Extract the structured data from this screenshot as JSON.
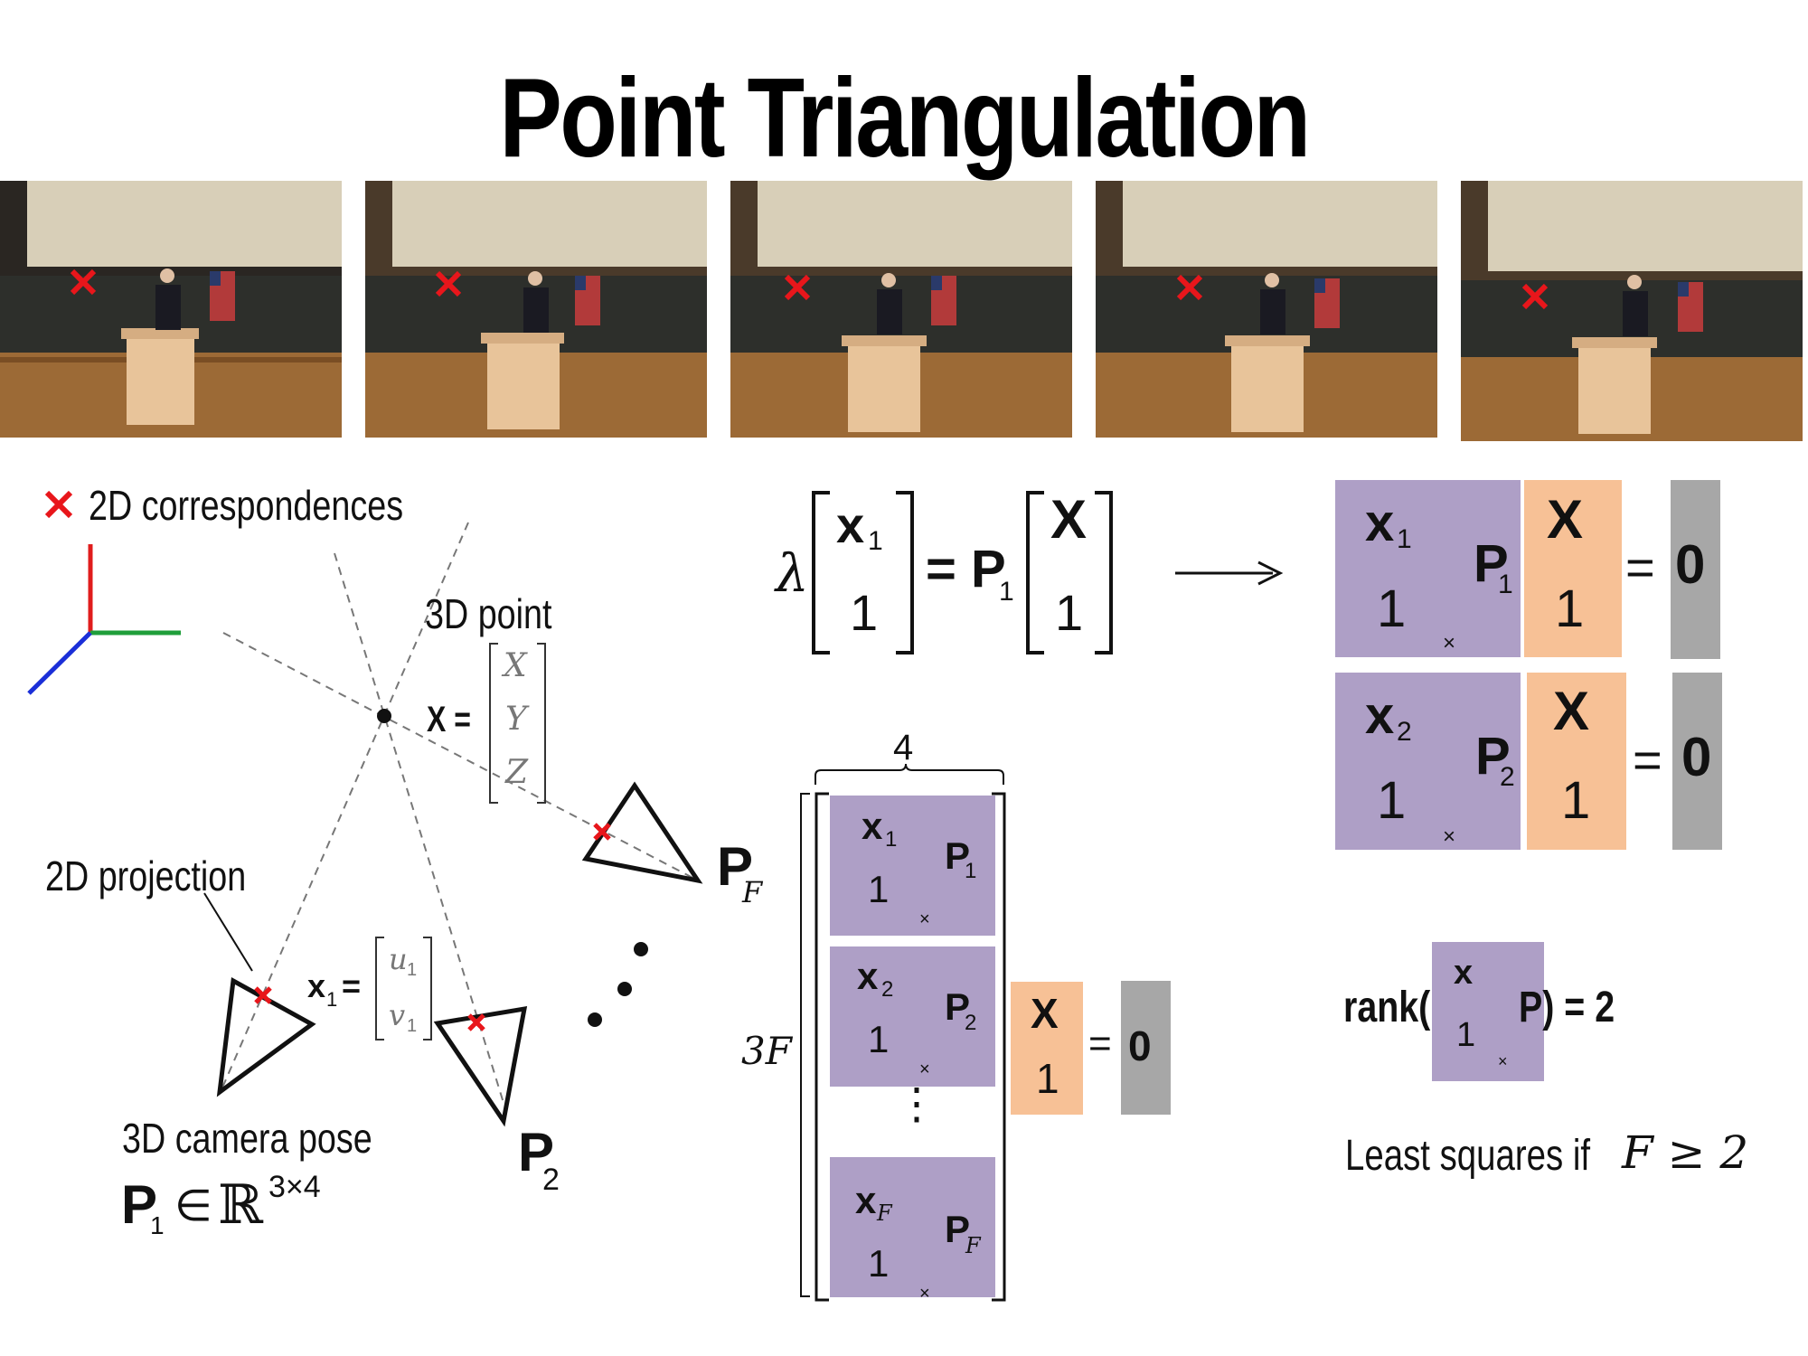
{
  "title": "Point Triangulation",
  "legend": {
    "marker": "✕",
    "label": "2D correspondences"
  },
  "labels": {
    "point3d": "3D point",
    "proj2d": "2D projection",
    "cam_pose": "3D camera pose",
    "X_eq": "X =",
    "X_vec": [
      "X",
      "Y",
      "Z"
    ],
    "x1_eq_main": "x",
    "x1_eq_sub": "1",
    "x1_eq_sign": "=",
    "x1_vec": [
      "u",
      "v"
    ],
    "x1_vec_sub": "1",
    "P1": "P",
    "P1_sub": "1",
    "in": "∈",
    "reals": "ℝ",
    "dims": "3×4",
    "P2": "P",
    "P2_sub": "2",
    "PF": "P",
    "PF_sub": "F"
  },
  "eq_top": {
    "lambda": "λ",
    "x": "x",
    "x_sub": "1",
    "one": "1",
    "equals_P": "= P",
    "P_sub": "1",
    "X": "X",
    "one_b": "1"
  },
  "arrow": "⟶",
  "stack": {
    "four": "4",
    "threeF": "3F",
    "rows": [
      {
        "x": "x",
        "sub": "1",
        "one": "1",
        "times": "×",
        "P": "P",
        "Psub": "1"
      },
      {
        "x": "x",
        "sub": "2",
        "one": "1",
        "times": "×",
        "P": "P",
        "Psub": "2"
      },
      {
        "x": "x",
        "sub": "F",
        "one": "1",
        "times": "×",
        "P": "P",
        "Psub": "F"
      }
    ],
    "vdots": "⋮",
    "X": "X",
    "one": "1",
    "eq": "=",
    "zero": "0"
  },
  "right_eqs": [
    {
      "x": "x",
      "sub": "1",
      "one": "1",
      "times": "×",
      "P": "P",
      "Psub": "1",
      "X": "X",
      "oneb": "1",
      "eq": "=",
      "zero": "0"
    },
    {
      "x": "x",
      "sub": "2",
      "one": "1",
      "times": "×",
      "P": "P",
      "Psub": "2",
      "X": "X",
      "oneb": "1",
      "eq": "=",
      "zero": "0"
    }
  ],
  "rank": {
    "prefix": "rank(",
    "x": "x",
    "one": "1",
    "times": "×",
    "suffix": "P) = 2"
  },
  "least_squares": {
    "text": "Least squares if",
    "cond": "F ≥ 2"
  },
  "colors": {
    "purple": "#ae9fc6",
    "orange": "#f7c196",
    "gray": "#a7a7a7",
    "marker": "#e8161b",
    "axis_x": "#e01d1d",
    "axis_y": "#1f9e3a",
    "axis_z": "#1b2fd8"
  }
}
